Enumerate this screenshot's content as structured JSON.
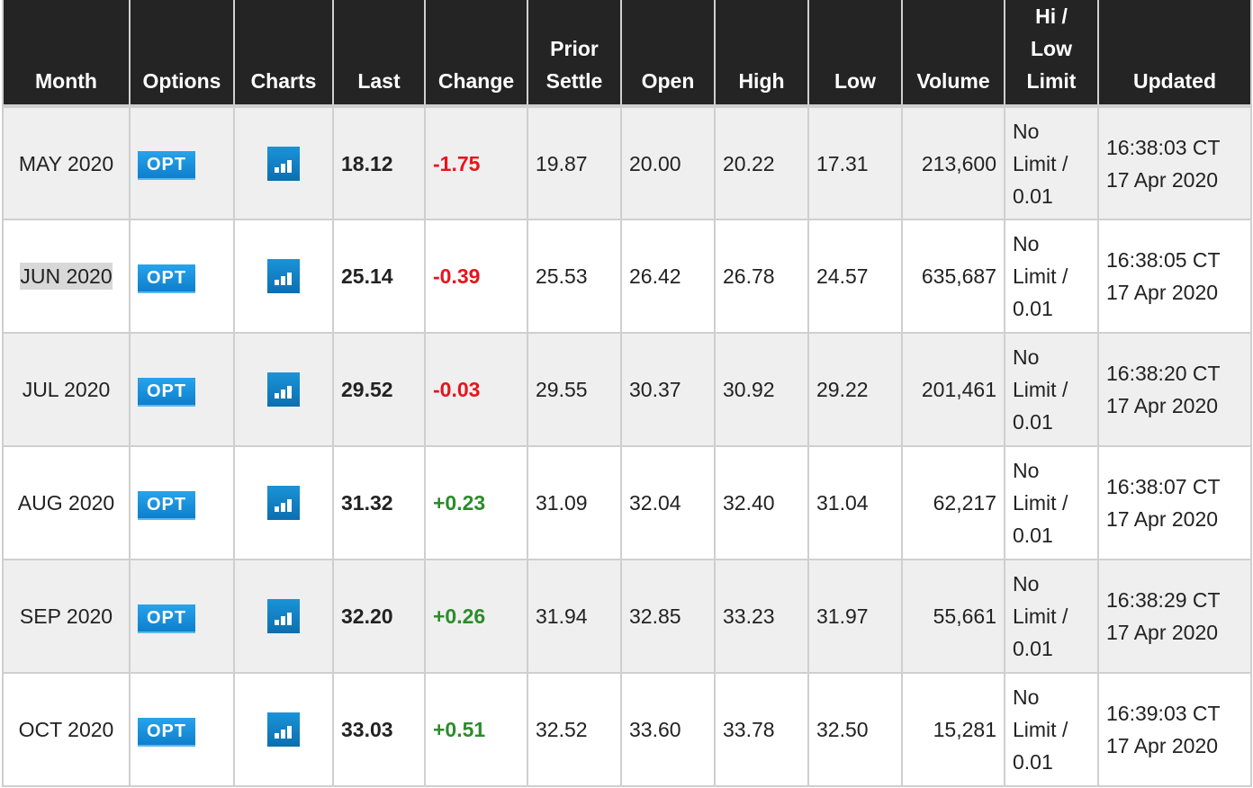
{
  "headers": [
    "Month",
    "Options",
    "Charts",
    "Last",
    "Change",
    "Prior Settle",
    "Open",
    "High",
    "Low",
    "Volume",
    "Hi / Low Limit",
    "Updated"
  ],
  "colors": {
    "negative": "#e8141c",
    "positive": "#2b8c2b",
    "opt_button": "#1a8fe0",
    "header_bg": "#242424"
  },
  "icons": {
    "charts": "bar-chart-icon"
  },
  "rows": [
    {
      "month": "MAY 2020",
      "opt": "OPT",
      "last": "18.12",
      "change": "-1.75",
      "dir": "neg",
      "prior": "19.87",
      "open": "20.00",
      "high": "20.22",
      "low": "17.31",
      "volume": "213,600",
      "limit_a": "No",
      "limit_b": "Limit /",
      "limit_c": "0.01",
      "time": "16:38:03 CT",
      "date": "17 Apr 2020"
    },
    {
      "month": "JUN 2020",
      "opt": "OPT",
      "last": "25.14",
      "change": "-0.39",
      "dir": "neg",
      "prior": "25.53",
      "open": "26.42",
      "high": "26.78",
      "low": "24.57",
      "volume": "635,687",
      "limit_a": "No",
      "limit_b": "Limit /",
      "limit_c": "0.01",
      "time": "16:38:05 CT",
      "date": "17 Apr 2020"
    },
    {
      "month": "JUL 2020",
      "opt": "OPT",
      "last": "29.52",
      "change": "-0.03",
      "dir": "neg",
      "prior": "29.55",
      "open": "30.37",
      "high": "30.92",
      "low": "29.22",
      "volume": "201,461",
      "limit_a": "No",
      "limit_b": "Limit /",
      "limit_c": "0.01",
      "time": "16:38:20 CT",
      "date": "17 Apr 2020"
    },
    {
      "month": "AUG 2020",
      "opt": "OPT",
      "last": "31.32",
      "change": "+0.23",
      "dir": "pos",
      "prior": "31.09",
      "open": "32.04",
      "high": "32.40",
      "low": "31.04",
      "volume": "62,217",
      "limit_a": "No",
      "limit_b": "Limit /",
      "limit_c": "0.01",
      "time": "16:38:07 CT",
      "date": "17 Apr 2020"
    },
    {
      "month": "SEP 2020",
      "opt": "OPT",
      "last": "32.20",
      "change": "+0.26",
      "dir": "pos",
      "prior": "31.94",
      "open": "32.85",
      "high": "33.23",
      "low": "31.97",
      "volume": "55,661",
      "limit_a": "No",
      "limit_b": "Limit /",
      "limit_c": "0.01",
      "time": "16:38:29 CT",
      "date": "17 Apr 2020"
    },
    {
      "month": "OCT 2020",
      "opt": "OPT",
      "last": "33.03",
      "change": "+0.51",
      "dir": "pos",
      "prior": "32.52",
      "open": "33.60",
      "high": "33.78",
      "low": "32.50",
      "volume": "15,281",
      "limit_a": "No",
      "limit_b": "Limit /",
      "limit_c": "0.01",
      "time": "16:39:03 CT",
      "date": "17 Apr 2020"
    }
  ]
}
